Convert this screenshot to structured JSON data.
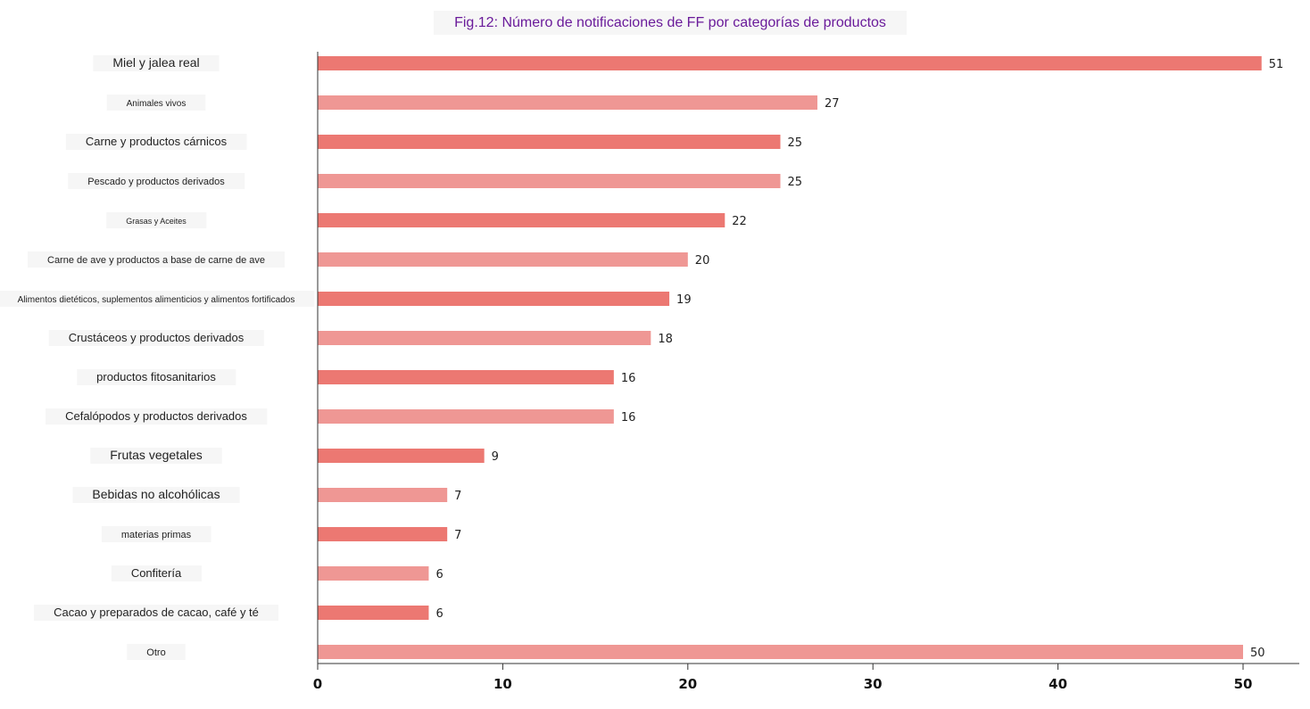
{
  "chart_data": {
    "type": "bar",
    "orientation": "horizontal",
    "title": "Fig.12: Número de notificaciones de FF por categorías de productos",
    "categories": [
      "Miel y jalea real",
      "Animales vivos",
      "Carne y productos cárnicos",
      "Pescado y productos derivados",
      "Grasas y Aceites",
      "Carne de ave y productos a base de carne de ave",
      "Alimentos dietéticos, suplementos alimenticios y alimentos fortificados",
      "Crustáceos y productos derivados",
      "productos fitosanitarios",
      "Cefalópodos y productos derivados",
      "Frutas vegetales",
      "Bebidas no alcohólicas",
      "materias primas",
      "Confitería",
      "Cacao y preparados de cacao, café y té",
      "Otro"
    ],
    "values": [
      51,
      27,
      25,
      25,
      22,
      20,
      19,
      18,
      16,
      16,
      9,
      7,
      7,
      6,
      6,
      50
    ],
    "xlim": [
      0,
      53
    ],
    "xticks": [
      0,
      10,
      20,
      30,
      40,
      50
    ],
    "grid": false,
    "colors": {
      "bar_dark": "#ec7872",
      "bar_light": "#ef9794",
      "title": "#6a1b9a",
      "axis": "#333333"
    }
  }
}
